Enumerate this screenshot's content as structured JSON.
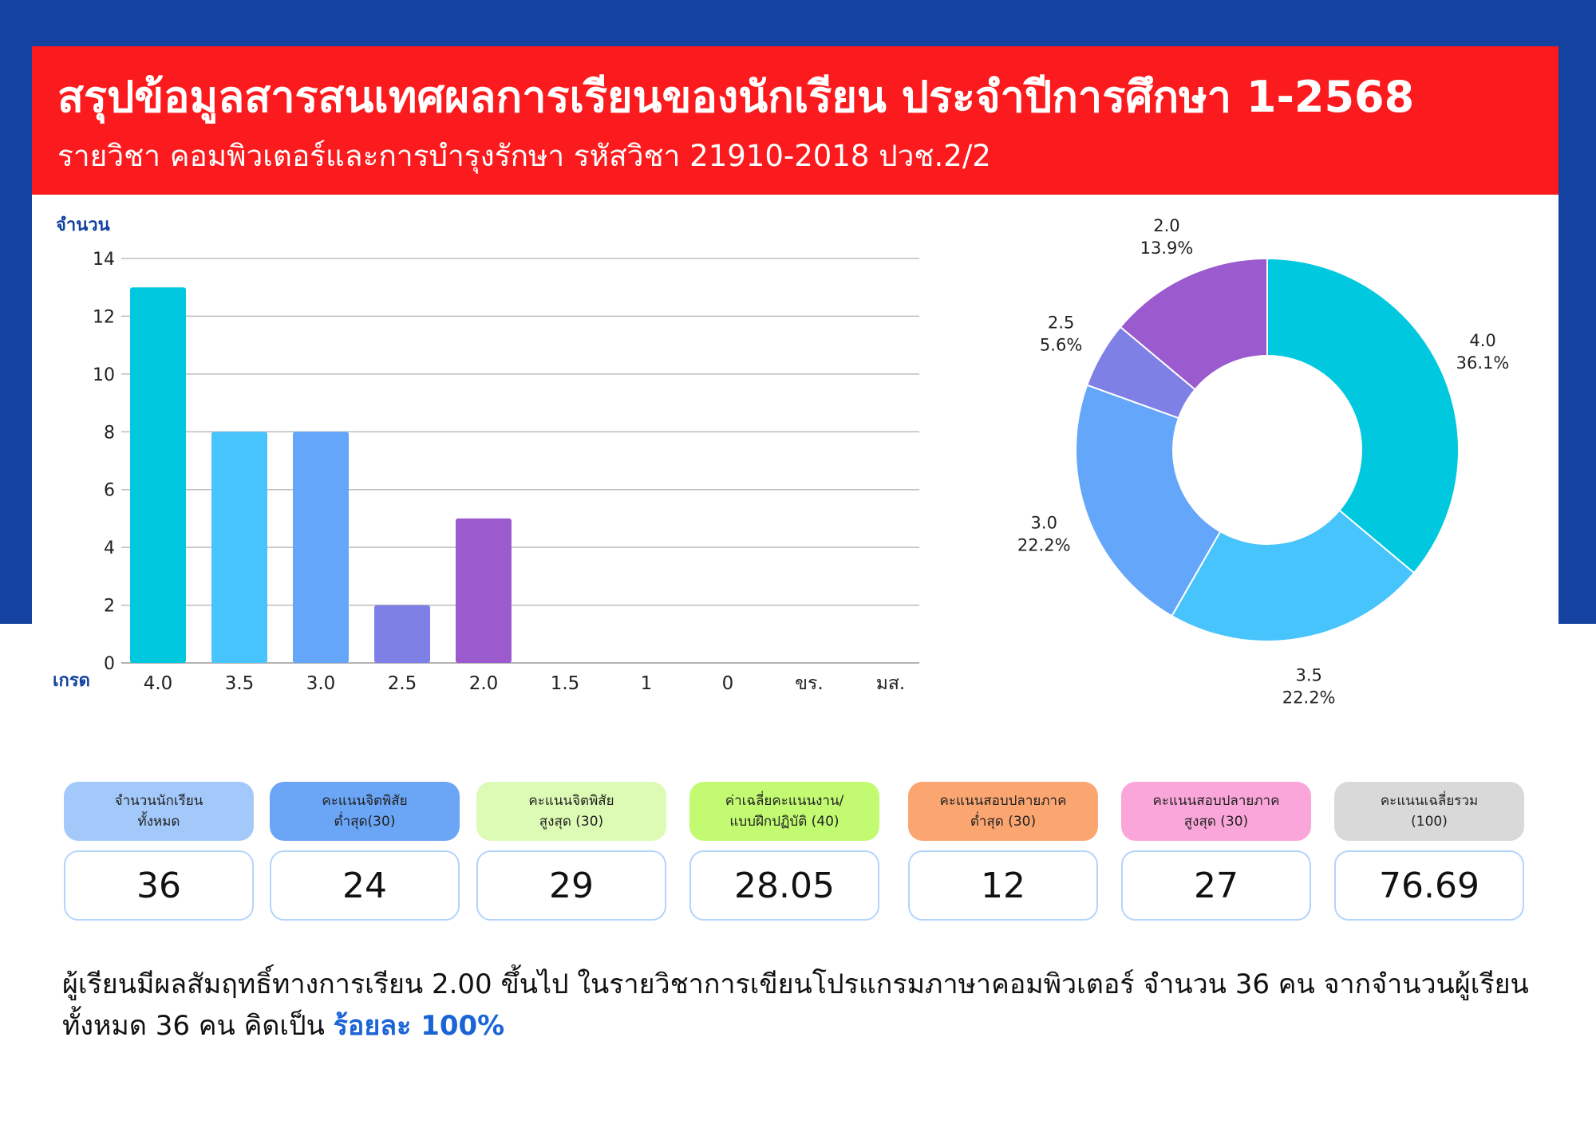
{
  "header": {
    "title": "สรุปข้อมูลสารสนเทศผลการเรียนของนักเรียน ประจำปีการศึกษา 1-2568",
    "subtitle": "รายวิชา  คอมพิวเตอร์และการบำรุงรักษา  รหัสวิชา 21910-2018 ปวช.2/2"
  },
  "colors": {
    "header_bg": "#fb1a1d",
    "page_bg": "#1342a0",
    "highlight": "#1a64d6"
  },
  "chart_data": [
    {
      "type": "bar",
      "ylabel": "จำนวน",
      "xlabel": "เกรด",
      "ylim": [
        0,
        14
      ],
      "yticks": [
        0,
        2,
        4,
        6,
        8,
        10,
        12,
        14
      ],
      "grid": true,
      "categories": [
        "4.0",
        "3.5",
        "3.0",
        "2.5",
        "2.0",
        "1.5",
        "1",
        "0",
        "ขร.",
        "มส."
      ],
      "values": [
        13,
        8,
        8,
        2,
        5,
        0,
        0,
        0,
        0,
        0
      ],
      "colors": [
        "#00c8de",
        "#47c4fc",
        "#64a6fa",
        "#7f80e6",
        "#9b5bcf",
        "#9b5bcf",
        "#9b5bcf",
        "#9b5bcf",
        "#9b5bcf",
        "#9b5bcf"
      ]
    },
    {
      "type": "pie",
      "donut": true,
      "slices": [
        {
          "label": "4.0",
          "value": 36.1,
          "percent": "36.1%",
          "color": "#00c8de"
        },
        {
          "label": "3.5",
          "value": 22.2,
          "percent": "22.2%",
          "color": "#47c4fc"
        },
        {
          "label": "3.0",
          "value": 22.2,
          "percent": "22.2%",
          "color": "#64a6fa"
        },
        {
          "label": "2.5",
          "value": 5.6,
          "percent": "5.6%",
          "color": "#7f80e6"
        },
        {
          "label": "2.0",
          "value": 13.9,
          "percent": "13.9%",
          "color": "#9b5bcf"
        }
      ]
    }
  ],
  "stats": [
    {
      "label": "จำนวนนักเรียน\nทั้งหมด",
      "value": "36",
      "color": "#a3c9fb"
    },
    {
      "label": "คะแนนจิตพิสัย\nต่ำสุด(30)",
      "value": "24",
      "color": "#6aa5f6"
    },
    {
      "label": "คะแนนจิตพิสัย\nสูงสุด (30)",
      "value": "29",
      "color": "#ddfbb4"
    },
    {
      "label": "ค่าเฉลี่ยคะแนนงาน/\nแบบฝึกปฏิบัติ (40)",
      "value": "28.05",
      "color": "#c2fb72"
    },
    {
      "label": "คะแนนสอบปลายภาค\nต่ำสุด (30)",
      "value": "12",
      "color": "#fba671"
    },
    {
      "label": "คะแนนสอบปลายภาค\nสูงสุด (30)",
      "value": "27",
      "color": "#fba6da"
    },
    {
      "label": "คะแนนเฉลี่ยรวม\n(100)",
      "value": "76.69",
      "color": "#d9d9d9"
    }
  ],
  "summary": {
    "text": "ผู้เรียนมีผลสัมฤทธิ์ทางการเรียน 2.00 ขึ้นไป ในรายวิชาการเขียนโปรแกรมภาษาคอมพิวเตอร์ จำนวน 36 คน จากจำนวนผู้เรียนทั้งหมด 36 คน คิดเป็น ",
    "highlight": "ร้อยละ  100%"
  }
}
